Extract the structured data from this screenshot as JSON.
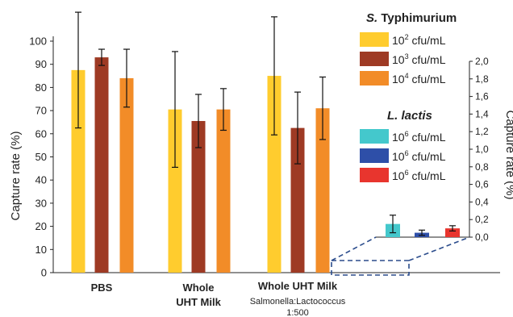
{
  "chart_data": [
    {
      "type": "bar",
      "ylabel": "Capture rate (%)",
      "ylim": [
        0,
        100
      ],
      "yticks": [
        0,
        10,
        20,
        30,
        40,
        50,
        60,
        70,
        80,
        90,
        100
      ],
      "grid": false,
      "categories": [
        "PBS",
        "Whole UHT Milk",
        "Whole UHT Milk"
      ],
      "category_subtitles": [
        "",
        "",
        "Salmonella:Lactococcus 1:500"
      ],
      "series": [
        {
          "name": "10^2 cfu/mL",
          "color": "#FFCC2E",
          "values": [
            87.5,
            70.5,
            85.0
          ],
          "errors": [
            25.0,
            25.0,
            25.5
          ]
        },
        {
          "name": "10^3 cfu/mL",
          "color": "#9E3A24",
          "values": [
            93.0,
            65.5,
            62.5
          ],
          "errors": [
            3.5,
            11.5,
            15.5
          ]
        },
        {
          "name": "10^4 cfu/mL",
          "color": "#F28C28",
          "values": [
            84.0,
            70.5,
            71.0
          ],
          "errors": [
            12.5,
            9.0,
            13.5
          ]
        }
      ]
    },
    {
      "type": "bar",
      "ylabel": "Capture rate (%)",
      "ylim": [
        0,
        2
      ],
      "yticks": [
        "0,0",
        "0,2",
        "0,4",
        "0,6",
        "0,8",
        "1,0",
        "1,2",
        "1,4",
        "1,6",
        "1,8",
        "2,0"
      ],
      "grid": false,
      "categories": [
        "Whole UHT Milk Salmonella:Lactococcus 1:500"
      ],
      "series": [
        {
          "name": "10^6 cfu/mL",
          "color": "#44C8CC",
          "values": [
            0.15
          ],
          "errors": [
            0.1
          ]
        },
        {
          "name": "10^6 cfu/mL",
          "color": "#2E4FA8",
          "values": [
            0.05
          ],
          "errors": [
            0.03
          ]
        },
        {
          "name": "10^6 cfu/mL",
          "color": "#E8352E",
          "values": [
            0.1
          ],
          "errors": [
            0.03
          ]
        }
      ]
    }
  ],
  "legend": {
    "group1": {
      "heading_italic": "S.",
      "heading_rest": " Typhimurium",
      "items": [
        {
          "base": "10",
          "exp": "2",
          "unit": " cfu/mL",
          "color": "#FFCC2E"
        },
        {
          "base": "10",
          "exp": "3",
          "unit": " cfu/mL",
          "color": "#9E3A24"
        },
        {
          "base": "10",
          "exp": "4",
          "unit": " cfu/mL",
          "color": "#F28C28"
        }
      ]
    },
    "group2": {
      "heading": "L. lactis",
      "items": [
        {
          "base": "10",
          "exp": "6",
          "unit": " cfu/mL",
          "color": "#44C8CC"
        },
        {
          "base": "10",
          "exp": "6",
          "unit": " cfu/mL",
          "color": "#2E4FA8"
        },
        {
          "base": "10",
          "exp": "6",
          "unit": " cfu/mL",
          "color": "#E8352E"
        }
      ]
    }
  },
  "category_labels": [
    {
      "line1": "PBS",
      "line2": ""
    },
    {
      "line1": "Whole",
      "line2": "UHT Milk"
    },
    {
      "line1": "Whole UHT Milk",
      "line2": "Salmonella:Lactococcus",
      "line3": "1:500"
    }
  ]
}
